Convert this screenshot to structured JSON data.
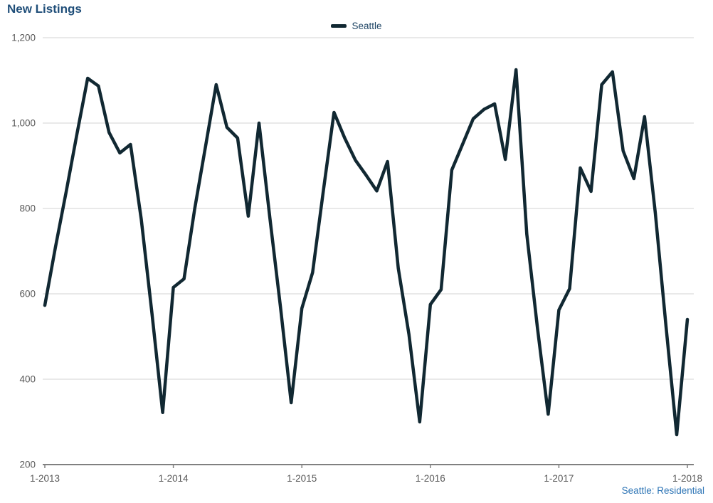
{
  "page": {
    "title": "New Listings",
    "footer": "Seattle: Residential"
  },
  "legend": {
    "series_label": "Seattle"
  },
  "colors": {
    "line": "#112832",
    "title_text": "#1f4e79",
    "legend_text": "#1f4565",
    "footer_text": "#2e75b6",
    "axis_label": "#595959",
    "gridline": "#d3d3d3",
    "axis_line": "#808080"
  },
  "chart_data": {
    "type": "line",
    "title": "New Listings",
    "footnote": "Seattle: Residential",
    "grid": "horizontal",
    "legend_position": "top-center",
    "ylim": [
      200,
      1200
    ],
    "y_ticks": [
      200,
      400,
      600,
      800,
      1000,
      1200
    ],
    "y_tick_labels": [
      "200",
      "400",
      "600",
      "800",
      "1,000",
      "1,200"
    ],
    "x_tick_labels": [
      "1-2013",
      "1-2014",
      "1-2015",
      "1-2016",
      "1-2017",
      "1-2018"
    ],
    "x_tick_indices": [
      0,
      12,
      24,
      36,
      48,
      60
    ],
    "x": [
      "1-2013",
      "2-2013",
      "3-2013",
      "4-2013",
      "5-2013",
      "6-2013",
      "7-2013",
      "8-2013",
      "9-2013",
      "10-2013",
      "11-2013",
      "12-2013",
      "1-2014",
      "2-2014",
      "3-2014",
      "4-2014",
      "5-2014",
      "6-2014",
      "7-2014",
      "8-2014",
      "9-2014",
      "10-2014",
      "11-2014",
      "12-2014",
      "1-2015",
      "2-2015",
      "3-2015",
      "4-2015",
      "5-2015",
      "6-2015",
      "7-2015",
      "8-2015",
      "9-2015",
      "10-2015",
      "11-2015",
      "12-2015",
      "1-2016",
      "2-2016",
      "3-2016",
      "4-2016",
      "5-2016",
      "6-2016",
      "7-2016",
      "8-2016",
      "9-2016",
      "10-2016",
      "11-2016",
      "12-2016",
      "1-2017",
      "2-2017",
      "3-2017",
      "4-2017",
      "5-2017",
      "6-2017",
      "7-2017",
      "8-2017",
      "9-2017",
      "10-2017",
      "11-2017",
      "12-2017",
      "1-2018"
    ],
    "series": [
      {
        "name": "Seattle",
        "values": [
          573,
          710,
          840,
          975,
          1105,
          1087,
          978,
          930,
          950,
          775,
          555,
          322,
          615,
          635,
          800,
          945,
          1090,
          990,
          965,
          782,
          1000,
          780,
          570,
          345,
          566,
          650,
          840,
          1025,
          965,
          913,
          878,
          841,
          910,
          660,
          505,
          300,
          575,
          610,
          890,
          950,
          1010,
          1032,
          1045,
          915,
          1125,
          740,
          520,
          318,
          562,
          612,
          895,
          840,
          1090,
          1120,
          935,
          870,
          1015,
          790,
          525,
          270,
          540
        ]
      }
    ]
  }
}
